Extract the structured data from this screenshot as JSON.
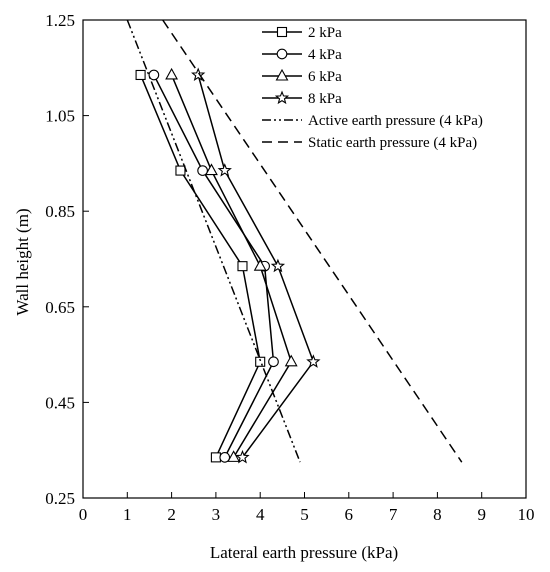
{
  "chart_data": {
    "type": "line",
    "xlabel": "Lateral earth pressure (kPa)",
    "ylabel": "Wall height (m)",
    "xlim": [
      0,
      10
    ],
    "ylim": [
      0.25,
      1.25
    ],
    "xticks": [
      0,
      1,
      2,
      3,
      4,
      5,
      6,
      7,
      8,
      9,
      10
    ],
    "yticks": [
      0.25,
      0.45,
      0.65,
      0.85,
      1.05,
      1.25
    ],
    "ytick_labels": [
      "0.25",
      "0.45",
      "0.65",
      "0.85",
      "1.05",
      "1.25"
    ],
    "grid": false,
    "legend_position": "top-right",
    "series": [
      {
        "name": "2 kPa",
        "marker": "square",
        "dash": "solid",
        "points": [
          [
            1.3,
            1.135
          ],
          [
            2.2,
            0.935
          ],
          [
            3.6,
            0.735
          ],
          [
            4.0,
            0.535
          ],
          [
            3.0,
            0.335
          ]
        ]
      },
      {
        "name": "4 kPa",
        "marker": "circle",
        "dash": "solid",
        "points": [
          [
            1.6,
            1.135
          ],
          [
            2.7,
            0.935
          ],
          [
            4.1,
            0.735
          ],
          [
            4.3,
            0.535
          ],
          [
            3.2,
            0.335
          ]
        ]
      },
      {
        "name": "6 kPa",
        "marker": "triangle",
        "dash": "solid",
        "points": [
          [
            2.0,
            1.135
          ],
          [
            2.9,
            0.935
          ],
          [
            4.0,
            0.735
          ],
          [
            4.7,
            0.535
          ],
          [
            3.4,
            0.335
          ]
        ]
      },
      {
        "name": "8 kPa",
        "marker": "star",
        "dash": "solid",
        "points": [
          [
            2.6,
            1.135
          ],
          [
            3.2,
            0.935
          ],
          [
            4.4,
            0.735
          ],
          [
            5.2,
            0.535
          ],
          [
            3.6,
            0.335
          ]
        ]
      },
      {
        "name": "Active earth pressure (4 kPa)",
        "marker": "none",
        "dash": "dashdot",
        "points": [
          [
            1.0,
            1.25
          ],
          [
            4.9,
            0.325
          ]
        ]
      },
      {
        "name": "Static earth pressure (4 kPa)",
        "marker": "none",
        "dash": "dashed",
        "points": [
          [
            1.8,
            1.25
          ],
          [
            8.55,
            0.325
          ]
        ]
      }
    ]
  }
}
